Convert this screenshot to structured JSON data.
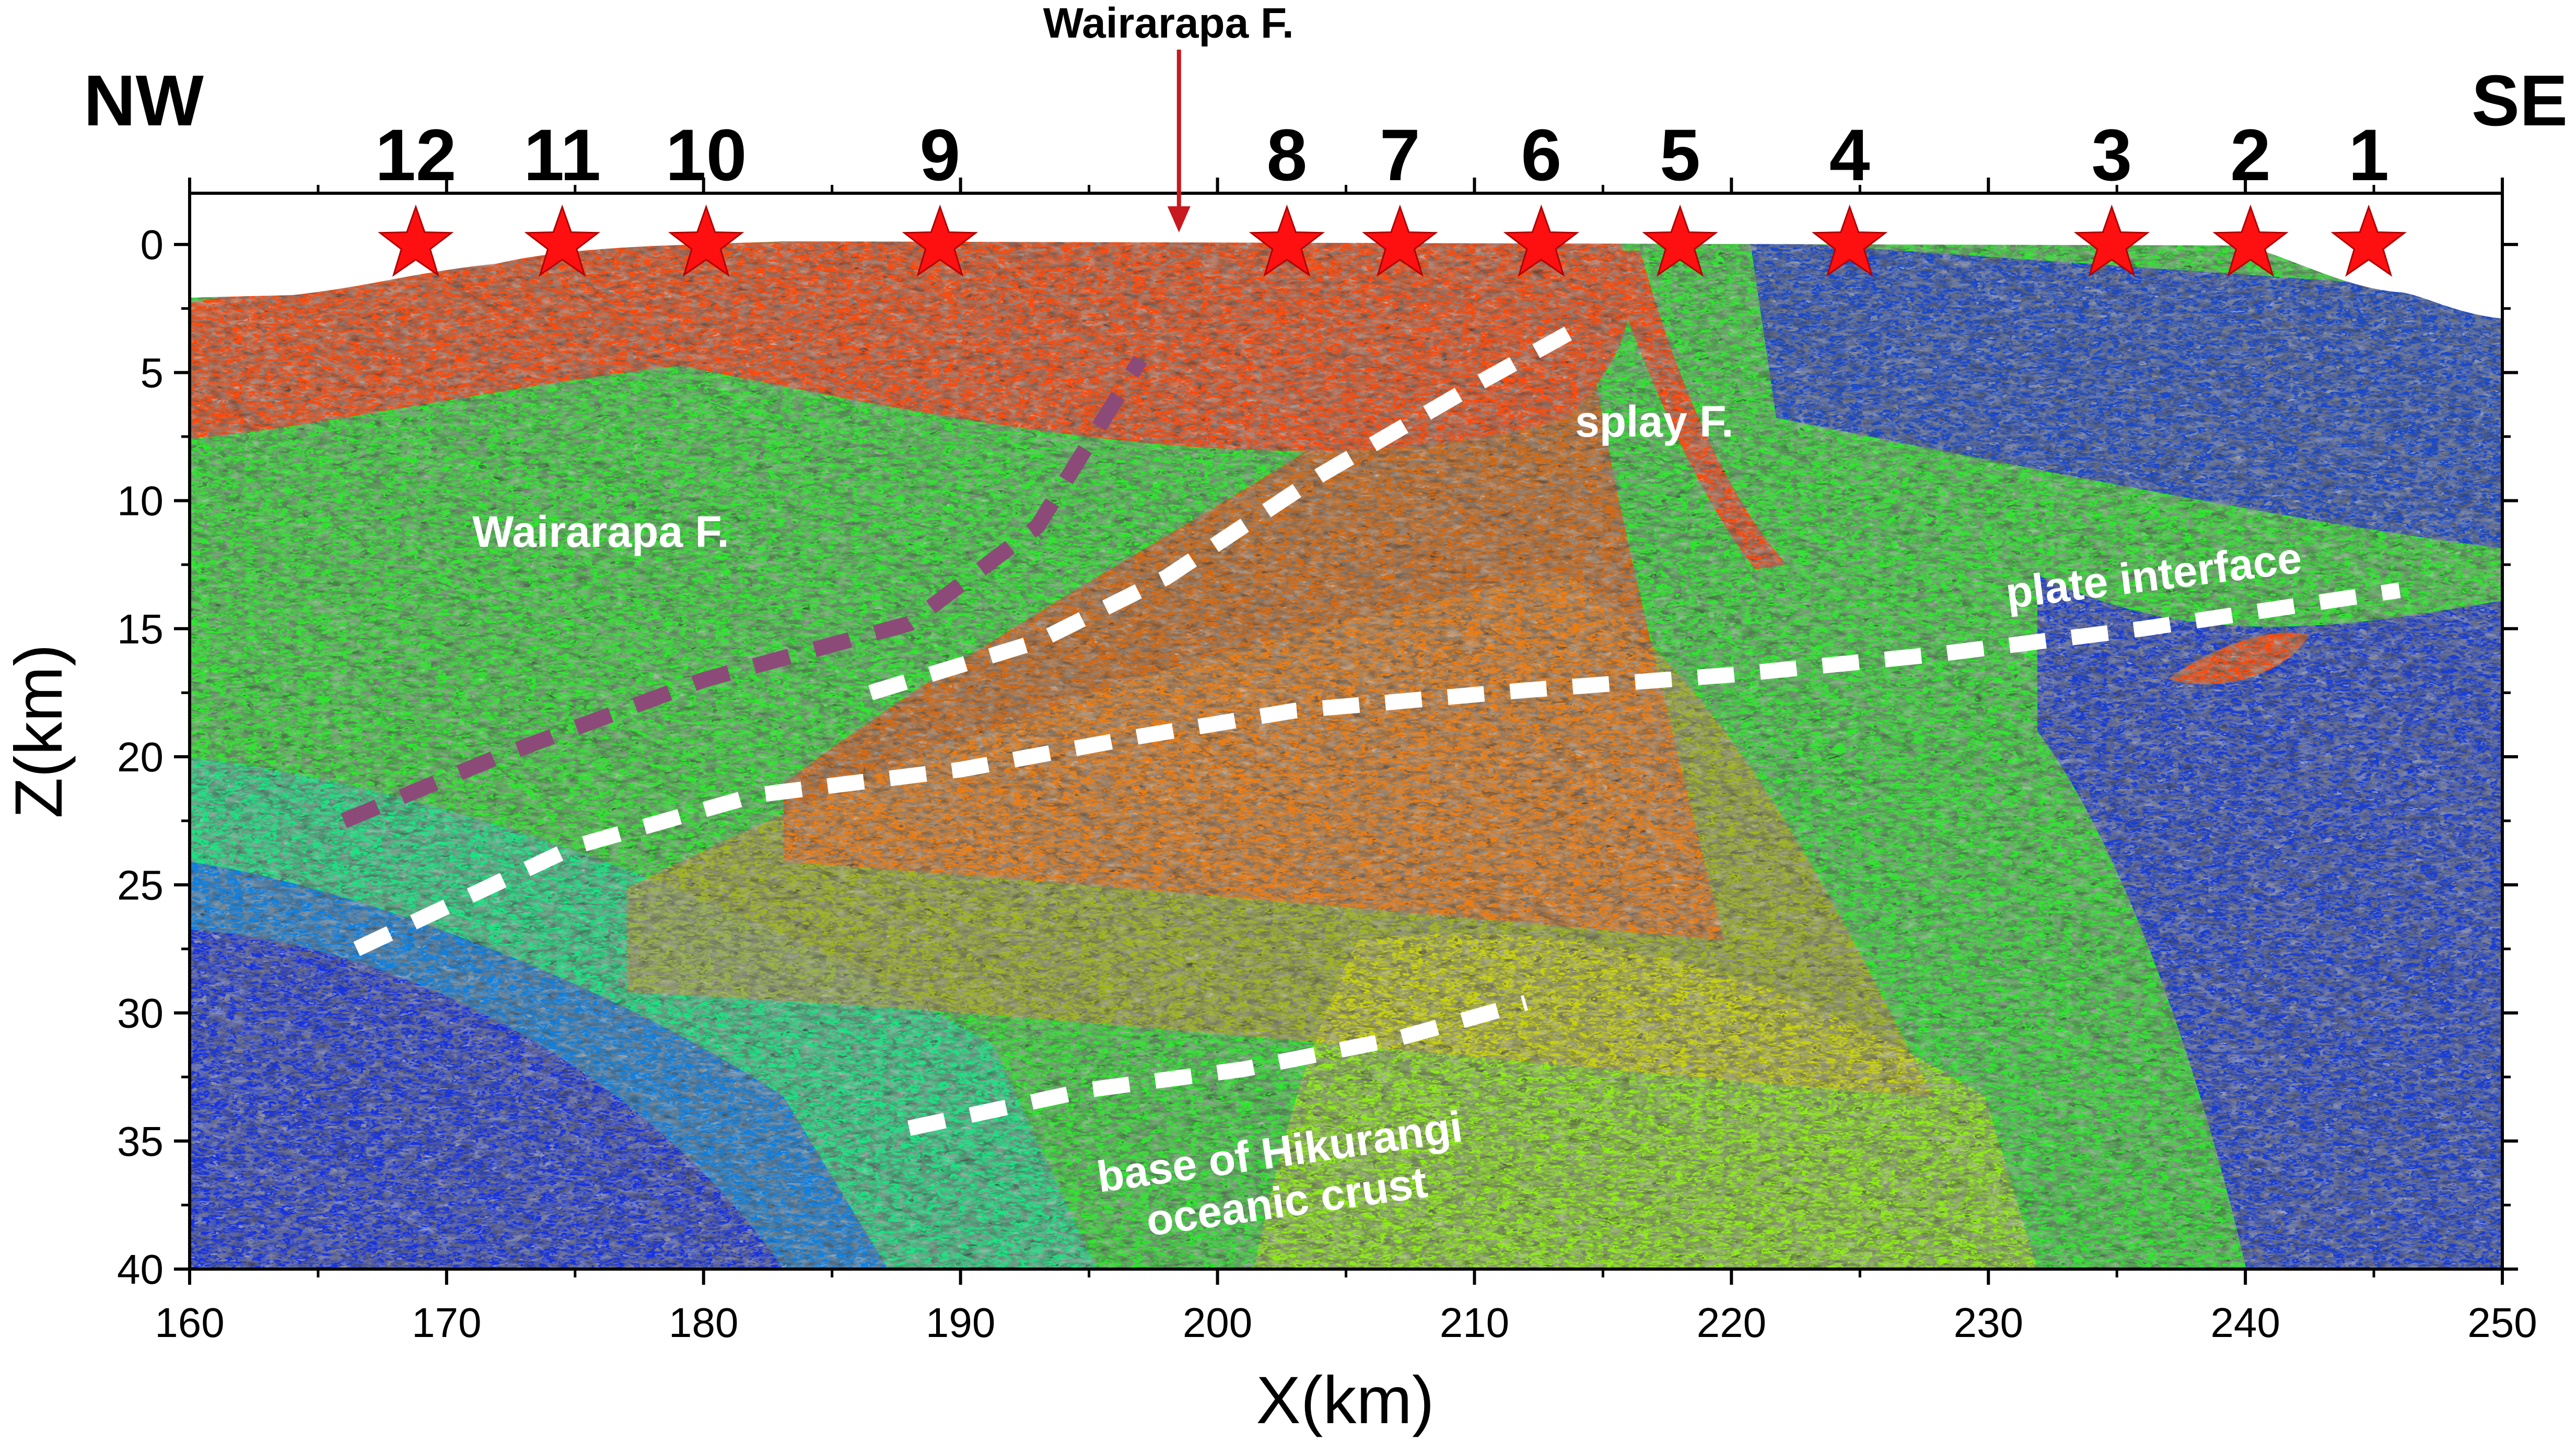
{
  "chart_data": {
    "type": "heatmap",
    "title": "",
    "xlabel": "X(km)",
    "ylabel": "Z(km)",
    "xlim": [
      160,
      250
    ],
    "ylim": [
      40,
      -2
    ],
    "y_inverted": true,
    "xticks": [
      160,
      170,
      180,
      190,
      200,
      210,
      220,
      230,
      240,
      250
    ],
    "yticks": [
      0,
      5,
      10,
      15,
      20,
      25,
      30,
      35,
      40
    ],
    "grid": false,
    "direction_labels": {
      "left": "NW",
      "right": "SE"
    },
    "colors": {
      "high": "#ff4a0a",
      "orange": "#ff8c14",
      "yellow": "#eef000",
      "green": "#2ee62e",
      "cyan": "#00e0e8",
      "low": "#1414ff",
      "station": "#ff1010",
      "arrow": "#c8191e",
      "wairarapa_line": "#8c4a78",
      "interpretation_line": "#ffffff"
    },
    "stations": [
      {
        "label": "1",
        "x": 244.8,
        "z": 0
      },
      {
        "label": "2",
        "x": 240.2,
        "z": 0
      },
      {
        "label": "3",
        "x": 234.8,
        "z": 0
      },
      {
        "label": "4",
        "x": 224.6,
        "z": 0
      },
      {
        "label": "5",
        "x": 218.0,
        "z": 0
      },
      {
        "label": "6",
        "x": 212.6,
        "z": 0
      },
      {
        "label": "7",
        "x": 207.1,
        "z": 0
      },
      {
        "label": "8",
        "x": 202.7,
        "z": 0
      },
      {
        "label": "9",
        "x": 189.2,
        "z": 0
      },
      {
        "label": "10",
        "x": 180.1,
        "z": 0
      },
      {
        "label": "11",
        "x": 174.5,
        "z": 0
      },
      {
        "label": "12",
        "x": 168.8,
        "z": 0
      }
    ],
    "surface_annotation": {
      "label": "Wairarapa F.",
      "x": 198.5
    },
    "interpretations": [
      {
        "label": "Wairarapa F.",
        "style": "dashed-purple",
        "points": [
          [
            166.0,
            22.5
          ],
          [
            172.0,
            20.0
          ],
          [
            180.0,
            17.0
          ],
          [
            188.0,
            14.8
          ],
          [
            193.0,
            11.0
          ],
          [
            197.0,
            4.5
          ]
        ],
        "label_pos": [
          176.0,
          11.8
        ]
      },
      {
        "label": "splay F.",
        "style": "dashed-white",
        "points": [
          [
            166.5,
            27.5
          ],
          [
            175.0,
            23.5
          ],
          [
            182.0,
            21.5
          ],
          [
            190.0,
            20.5
          ],
          [
            197.0,
            19.2
          ],
          [
            203.0,
            18.2
          ],
          [
            212.0,
            17.4
          ],
          [
            220.0,
            16.8
          ],
          [
            228.0,
            16.0
          ],
          [
            236.0,
            15.0
          ],
          [
            244.0,
            13.8
          ],
          [
            246.0,
            13.5
          ]
        ],
        "label_pos": [
          217.0,
          7.5
        ]
      },
      {
        "label": "",
        "style": "dashed-white",
        "points": [
          [
            186.5,
            17.5
          ],
          [
            193.0,
            15.5
          ],
          [
            198.0,
            13.0
          ],
          [
            204.0,
            9.0
          ],
          [
            210.0,
            5.5
          ],
          [
            214.5,
            3.0
          ]
        ]
      },
      {
        "label": "plate interface",
        "style": "dashed-white",
        "label_pos": [
          236.5,
          13.5
        ],
        "label_rotate": -7
      },
      {
        "label": "base of Hikurangi\noceanic crust",
        "style": "dashed-white",
        "points": [
          [
            188.0,
            34.5
          ],
          [
            195.0,
            33.0
          ],
          [
            201.0,
            32.2
          ],
          [
            207.0,
            31.0
          ],
          [
            212.0,
            29.6
          ]
        ],
        "label_pos": [
          202.5,
          36.0
        ],
        "label_rotate": -8
      }
    ]
  }
}
